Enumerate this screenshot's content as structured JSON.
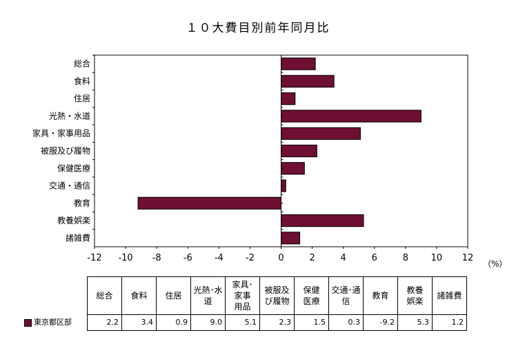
{
  "chart_data": {
    "type": "bar",
    "orientation": "horizontal",
    "title": "１０大費目別前年同月比",
    "unit_label": "（%）",
    "categories": [
      "総合",
      "食料",
      "住居",
      "光熱・水道",
      "家具・家事用品",
      "被服及び履物",
      "保健医療",
      "交通・通信",
      "教育",
      "教養娯楽",
      "諸雑費"
    ],
    "table_headers": [
      "総合",
      "食料",
      "住居",
      "光熱･水\n道",
      "家具･\n家事\n用品",
      "被服及\nび履物",
      "保健\n医療",
      "交通･通\n信",
      "教育",
      "教養\n娯楽",
      "諸雑費"
    ],
    "series": [
      {
        "name": "東京都区部",
        "values": [
          2.2,
          3.4,
          0.9,
          9.0,
          5.1,
          2.3,
          1.5,
          0.3,
          -9.2,
          5.3,
          1.2
        ],
        "color": "#6e0f33"
      }
    ],
    "value_labels": [
      "2.2",
      "3.4",
      "0.9",
      "9.0",
      "5.1",
      "2.3",
      "1.5",
      "0.3",
      "-9.2",
      "5.3",
      "1.2"
    ],
    "xlim": [
      -12,
      12
    ],
    "xticks": [
      -12,
      -10,
      -8,
      -6,
      -4,
      -2,
      0,
      2,
      4,
      6,
      8,
      10,
      12
    ],
    "grid": false,
    "legend": "table-row-left"
  }
}
